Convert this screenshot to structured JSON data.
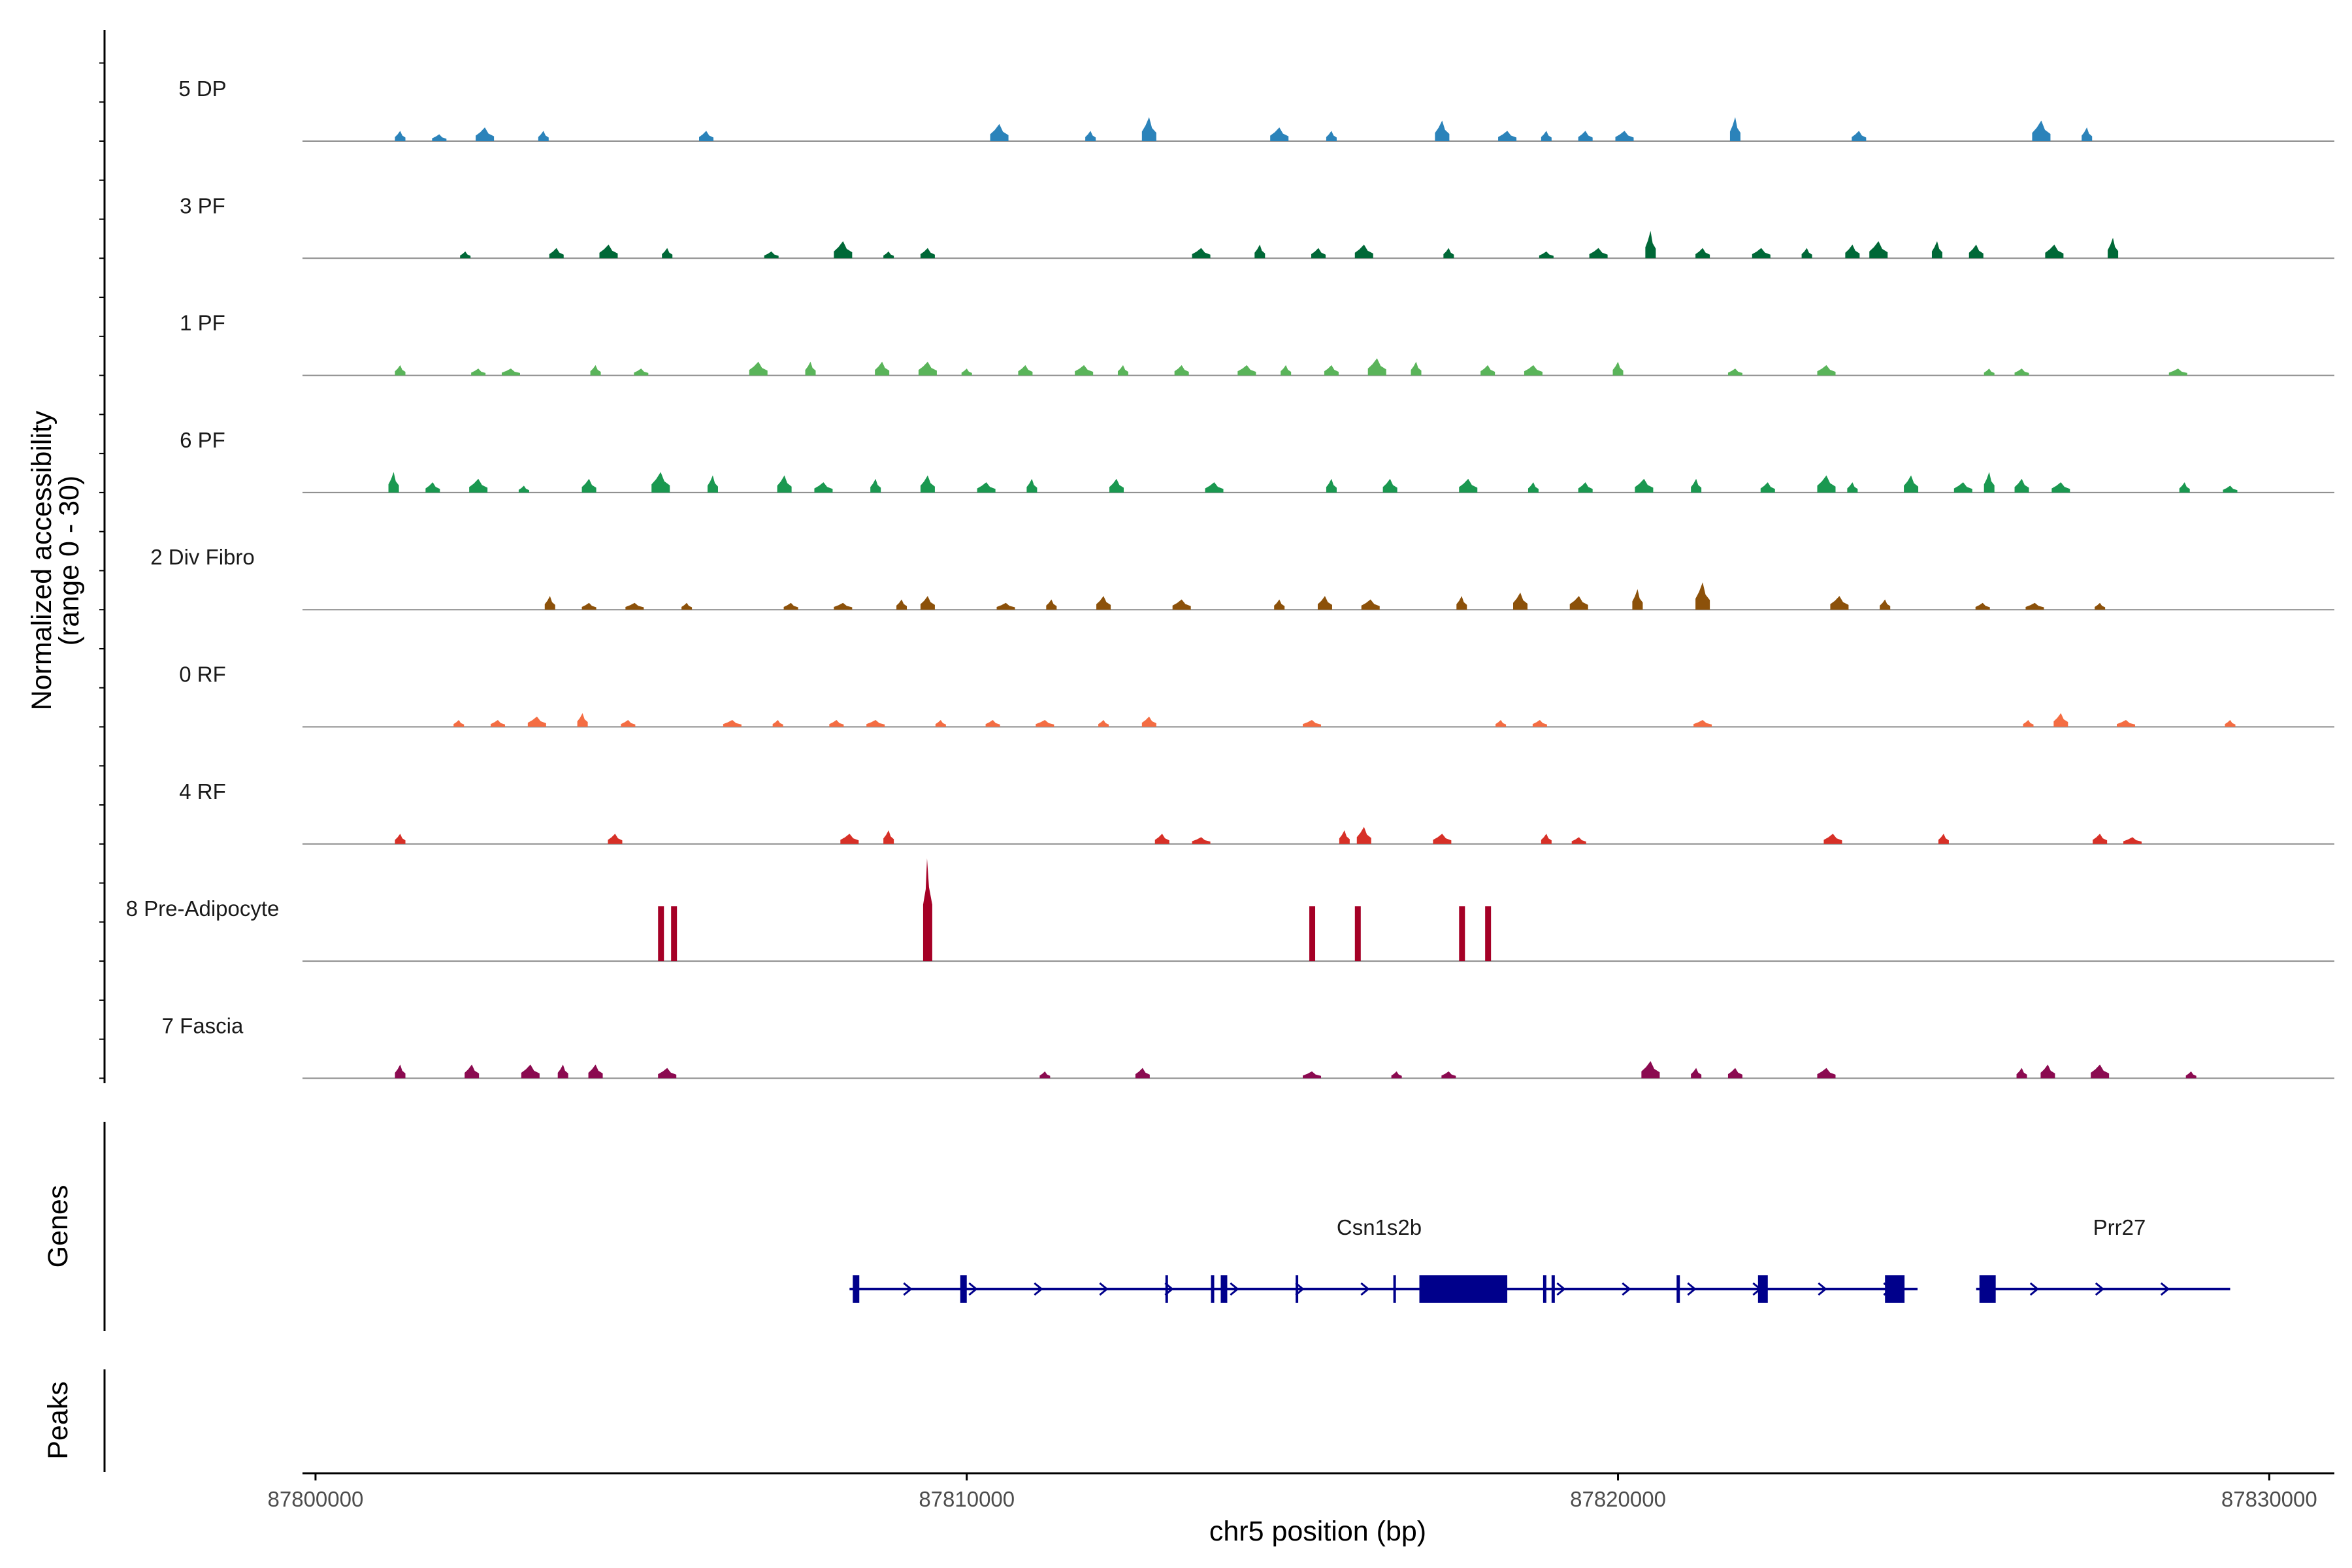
{
  "chart_data": {
    "type": "area",
    "subtype": "coverage-track",
    "y_axis_title": "Normalized accessibility",
    "y_axis_subtitle": "(range 0 - 30)",
    "x_axis_title": "chr5 position (bp)",
    "xlim": [
      87799800,
      87831000
    ],
    "ylim": [
      0,
      30
    ],
    "x_ticks": [
      87800000,
      87810000,
      87820000,
      87830000
    ],
    "x_tick_labels": [
      "87800000",
      "87810000",
      "87820000",
      "87830000"
    ],
    "tracks": [
      {
        "name": "5 DP",
        "color": "#2b83ba",
        "peaks": [
          [
            87801300,
            3
          ],
          [
            87801900,
            2
          ],
          [
            87802600,
            4
          ],
          [
            87803500,
            3
          ],
          [
            87806000,
            3
          ],
          [
            87810500,
            5
          ],
          [
            87811900,
            3
          ],
          [
            87812800,
            7
          ],
          [
            87814800,
            4
          ],
          [
            87815600,
            3
          ],
          [
            87817300,
            6
          ],
          [
            87818300,
            3
          ],
          [
            87818900,
            3
          ],
          [
            87819500,
            3
          ],
          [
            87820100,
            3
          ],
          [
            87821800,
            7
          ],
          [
            87823700,
            3
          ],
          [
            87826500,
            6
          ],
          [
            87827200,
            4
          ]
        ]
      },
      {
        "name": "3 PF",
        "color": "#006837",
        "peaks": [
          [
            87802300,
            2
          ],
          [
            87803700,
            3
          ],
          [
            87804500,
            4
          ],
          [
            87805400,
            3
          ],
          [
            87807000,
            2
          ],
          [
            87808100,
            5
          ],
          [
            87808800,
            2
          ],
          [
            87809400,
            3
          ],
          [
            87813600,
            3
          ],
          [
            87814500,
            4
          ],
          [
            87815400,
            3
          ],
          [
            87816100,
            4
          ],
          [
            87817400,
            3
          ],
          [
            87818900,
            2
          ],
          [
            87819700,
            3
          ],
          [
            87820500,
            8
          ],
          [
            87821300,
            3
          ],
          [
            87822200,
            3
          ],
          [
            87822900,
            3
          ],
          [
            87823600,
            4
          ],
          [
            87824000,
            5
          ],
          [
            87824900,
            5
          ],
          [
            87825500,
            4
          ],
          [
            87826700,
            4
          ],
          [
            87827600,
            6
          ]
        ]
      },
      {
        "name": "1 PF",
        "color": "#5ab45a",
        "peaks": [
          [
            87801300,
            3
          ],
          [
            87802500,
            2
          ],
          [
            87803000,
            2
          ],
          [
            87804300,
            3
          ],
          [
            87805000,
            2
          ],
          [
            87806800,
            4
          ],
          [
            87807600,
            4
          ],
          [
            87808700,
            4
          ],
          [
            87809400,
            4
          ],
          [
            87810000,
            2
          ],
          [
            87810900,
            3
          ],
          [
            87811800,
            3
          ],
          [
            87812400,
            3
          ],
          [
            87813300,
            3
          ],
          [
            87814300,
            3
          ],
          [
            87814900,
            3
          ],
          [
            87815600,
            3
          ],
          [
            87816300,
            5
          ],
          [
            87816900,
            4
          ],
          [
            87818000,
            3
          ],
          [
            87818700,
            3
          ],
          [
            87820000,
            4
          ],
          [
            87821800,
            2
          ],
          [
            87823200,
            3
          ],
          [
            87825700,
            2
          ],
          [
            87826200,
            2
          ],
          [
            87828600,
            2
          ]
        ]
      },
      {
        "name": "6 PF",
        "color": "#1a9850",
        "peaks": [
          [
            87801200,
            6
          ],
          [
            87801800,
            3
          ],
          [
            87802500,
            4
          ],
          [
            87803200,
            2
          ],
          [
            87804200,
            4
          ],
          [
            87805300,
            6
          ],
          [
            87806100,
            5
          ],
          [
            87807200,
            5
          ],
          [
            87807800,
            3
          ],
          [
            87808600,
            4
          ],
          [
            87809400,
            5
          ],
          [
            87810300,
            3
          ],
          [
            87811000,
            4
          ],
          [
            87812300,
            4
          ],
          [
            87813800,
            3
          ],
          [
            87815600,
            4
          ],
          [
            87816500,
            4
          ],
          [
            87817700,
            4
          ],
          [
            87818700,
            3
          ],
          [
            87819500,
            3
          ],
          [
            87820400,
            4
          ],
          [
            87821200,
            4
          ],
          [
            87822300,
            3
          ],
          [
            87823200,
            5
          ],
          [
            87823600,
            3
          ],
          [
            87824500,
            5
          ],
          [
            87825300,
            3
          ],
          [
            87825700,
            6
          ],
          [
            87826200,
            4
          ],
          [
            87826800,
            3
          ],
          [
            87828700,
            3
          ],
          [
            87829400,
            2
          ]
        ]
      },
      {
        "name": "2 Div Fibro",
        "color": "#8c510a",
        "peaks": [
          [
            87803600,
            4
          ],
          [
            87804200,
            2
          ],
          [
            87804900,
            2
          ],
          [
            87805700,
            2
          ],
          [
            87807300,
            2
          ],
          [
            87808100,
            2
          ],
          [
            87809000,
            3
          ],
          [
            87809400,
            4
          ],
          [
            87810600,
            2
          ],
          [
            87811300,
            3
          ],
          [
            87812100,
            4
          ],
          [
            87813300,
            3
          ],
          [
            87814800,
            3
          ],
          [
            87815500,
            4
          ],
          [
            87816200,
            3
          ],
          [
            87817600,
            4
          ],
          [
            87818500,
            5
          ],
          [
            87819400,
            4
          ],
          [
            87820300,
            6
          ],
          [
            87821300,
            8
          ],
          [
            87823400,
            4
          ],
          [
            87824100,
            3
          ],
          [
            87825600,
            2
          ],
          [
            87826400,
            2
          ],
          [
            87827400,
            2
          ]
        ]
      },
      {
        "name": "0 RF",
        "color": "#f46d43",
        "peaks": [
          [
            87802200,
            2
          ],
          [
            87802800,
            2
          ],
          [
            87803400,
            3
          ],
          [
            87804100,
            4
          ],
          [
            87804800,
            2
          ],
          [
            87806400,
            2
          ],
          [
            87807100,
            2
          ],
          [
            87808000,
            2
          ],
          [
            87808600,
            2
          ],
          [
            87809600,
            2
          ],
          [
            87810400,
            2
          ],
          [
            87811200,
            2
          ],
          [
            87812100,
            2
          ],
          [
            87812800,
            3
          ],
          [
            87815300,
            2
          ],
          [
            87818200,
            2
          ],
          [
            87818800,
            2
          ],
          [
            87821300,
            2
          ],
          [
            87826300,
            2
          ],
          [
            87826800,
            4
          ],
          [
            87827800,
            2
          ],
          [
            87829400,
            2
          ]
        ]
      },
      {
        "name": "4 RF",
        "color": "#d73027",
        "peaks": [
          [
            87801300,
            3
          ],
          [
            87804600,
            3
          ],
          [
            87808200,
            3
          ],
          [
            87808800,
            4
          ],
          [
            87813000,
            3
          ],
          [
            87813600,
            2
          ],
          [
            87815800,
            4
          ],
          [
            87816100,
            5
          ],
          [
            87817300,
            3
          ],
          [
            87818900,
            3
          ],
          [
            87819400,
            2
          ],
          [
            87823300,
            3
          ],
          [
            87825000,
            3
          ],
          [
            87827400,
            3
          ],
          [
            87827900,
            2
          ]
        ]
      },
      {
        "name": "8 Pre-Adipocyte",
        "color": "#a50026",
        "peaks": [
          [
            87805300,
            16
          ],
          [
            87805500,
            16
          ],
          [
            87809400,
            30
          ],
          [
            87815300,
            16
          ],
          [
            87816000,
            16
          ],
          [
            87817600,
            16
          ],
          [
            87818000,
            16
          ]
        ]
      },
      {
        "name": "7 Fascia",
        "color": "#8b0a50",
        "peaks": [
          [
            87801300,
            4
          ],
          [
            87802400,
            4
          ],
          [
            87803300,
            4
          ],
          [
            87803800,
            4
          ],
          [
            87804300,
            4
          ],
          [
            87805400,
            3
          ],
          [
            87811200,
            2
          ],
          [
            87812700,
            3
          ],
          [
            87815300,
            2
          ],
          [
            87816600,
            2
          ],
          [
            87817400,
            2
          ],
          [
            87820500,
            5
          ],
          [
            87821200,
            3
          ],
          [
            87821800,
            3
          ],
          [
            87823200,
            3
          ],
          [
            87826200,
            3
          ],
          [
            87826600,
            4
          ],
          [
            87827400,
            4
          ],
          [
            87828800,
            2
          ]
        ]
      }
    ],
    "gene_track_label": "Genes",
    "peaks_track_label": "Peaks",
    "genes": [
      {
        "name": "Csn1s2b",
        "start": 87808200,
        "end": 87824600,
        "strand": "+",
        "color": "#00008b",
        "exons": [
          [
            87808250,
            87808350
          ],
          [
            87809900,
            87810000
          ],
          [
            87813050,
            87813090
          ],
          [
            87813750,
            87813800
          ],
          [
            87813900,
            87814000
          ],
          [
            87815050,
            87815090
          ],
          [
            87816550,
            87816590
          ],
          [
            87816950,
            87818300
          ],
          [
            87818850,
            87818900
          ],
          [
            87818980,
            87819030
          ],
          [
            87820900,
            87820950
          ],
          [
            87822150,
            87822300
          ],
          [
            87824100,
            87824400
          ]
        ]
      },
      {
        "name": "Prr27",
        "start": 87825500,
        "end": 87829400,
        "strand": "+",
        "color": "#00008b",
        "exons": [
          [
            87825550,
            87825800
          ]
        ]
      }
    ]
  }
}
